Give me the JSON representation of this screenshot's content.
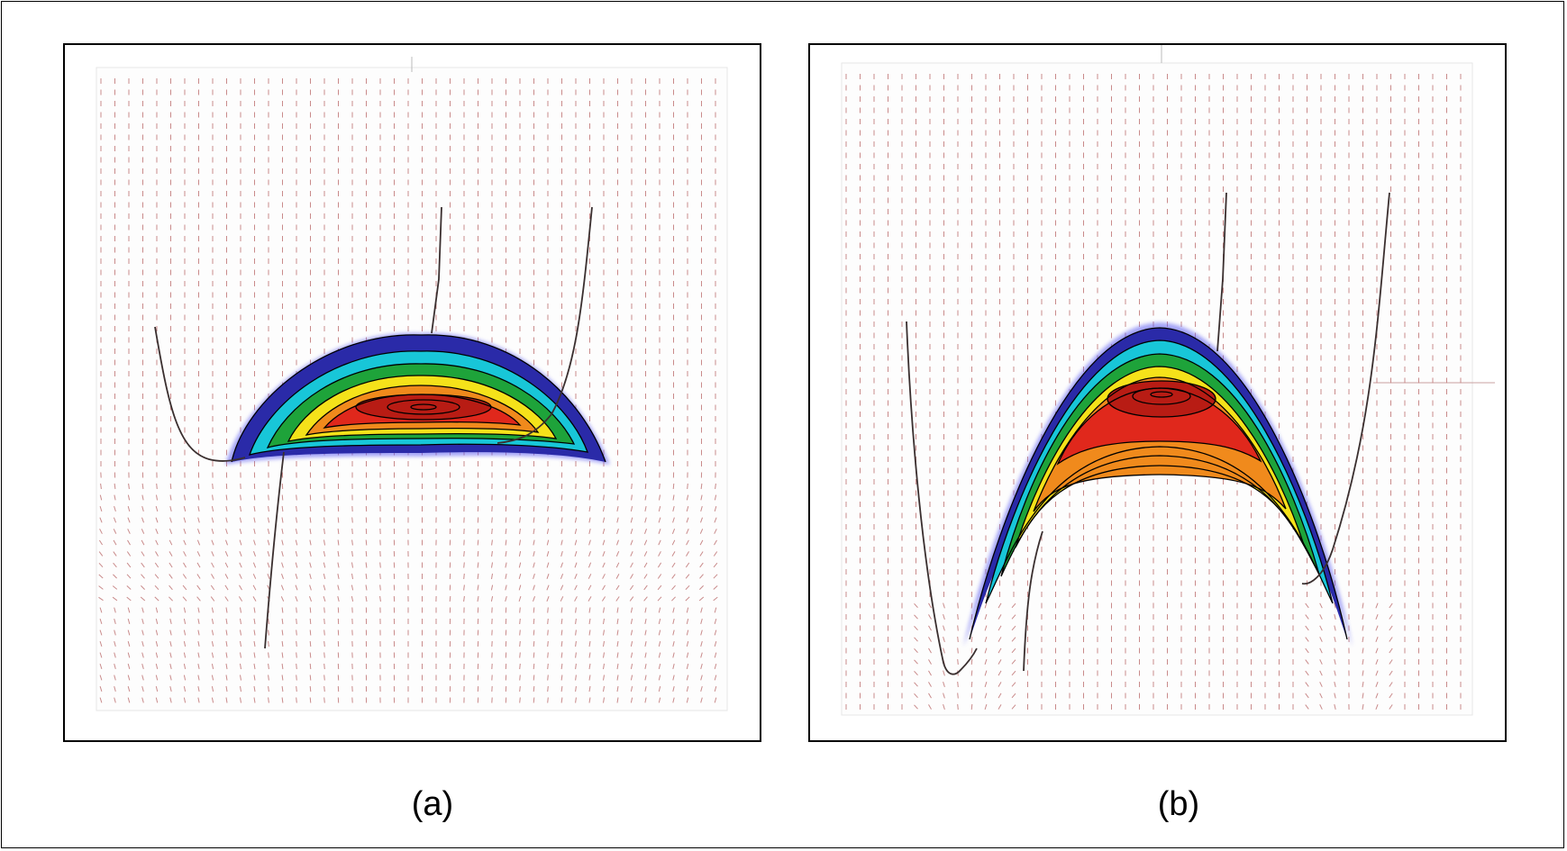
{
  "figure": {
    "panels": [
      {
        "id": "a",
        "caption": "(a)"
      },
      {
        "id": "b",
        "caption": "(b)"
      }
    ],
    "colors": {
      "border": "#000000",
      "vector_field": "#c98a8a",
      "contour_line": "#000000",
      "curve": "#3a2f2f",
      "heat_low": "#2a2aa8",
      "heat_cyan": "#18c6d8",
      "heat_green": "#1ea33a",
      "heat_yellow": "#f5e21a",
      "heat_orange": "#f08a1c",
      "heat_red": "#e0281c",
      "heat_peak": "#b81c14"
    }
  }
}
